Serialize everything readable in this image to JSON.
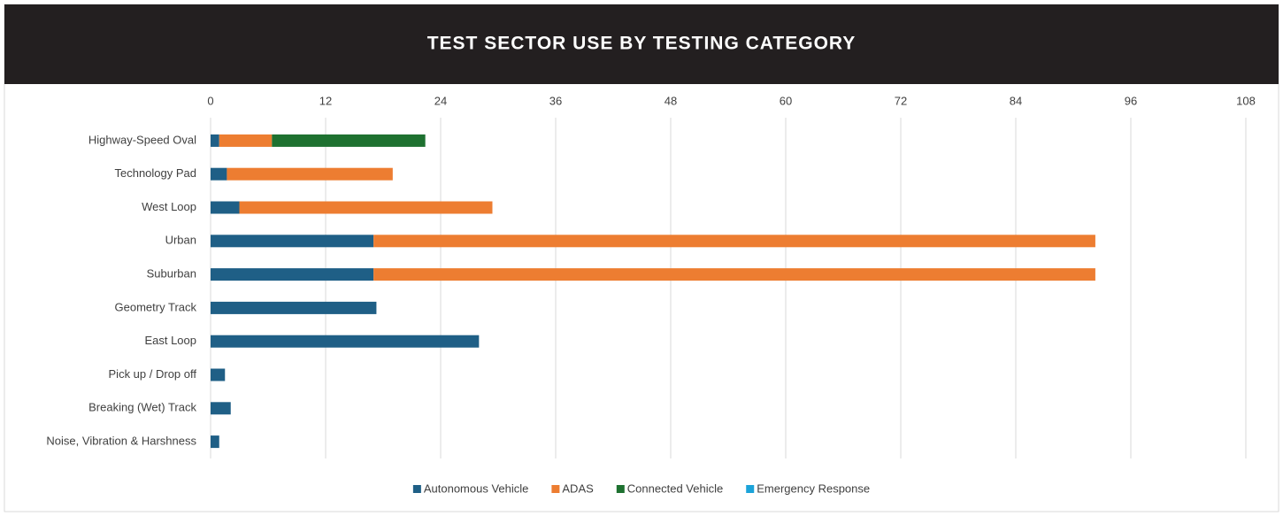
{
  "chart_data": {
    "type": "stacked_barh",
    "title": "TEST SECTOR USE BY TESTING CATEGORY",
    "categories": [
      "Highway-Speed Oval",
      "Technology Pad",
      "West Loop",
      "Urban",
      "Suburban",
      "Geometry Track",
      "East Loop",
      "Pick up / Drop off",
      "Breaking (Wet) Track",
      "Noise, Vibration & Harshness"
    ],
    "series": [
      {
        "name": "Autonomous Vehicle",
        "color": "#1f5f86",
        "values": [
          0.9,
          1.7,
          3.0,
          17.0,
          17.0,
          17.3,
          28.0,
          1.5,
          2.1,
          0.9
        ]
      },
      {
        "name": "ADAS",
        "color": "#ed7d31",
        "values": [
          5.5,
          17.3,
          26.4,
          75.3,
          75.3,
          0,
          0,
          0,
          0,
          0
        ]
      },
      {
        "name": "Connected Vehicle",
        "color": "#1e7130",
        "values": [
          16.0,
          0,
          0,
          0,
          0,
          0,
          0,
          0,
          0,
          0
        ]
      },
      {
        "name": "Emergency Response",
        "color": "#1ba3d9",
        "values": [
          0,
          0,
          0,
          0,
          0,
          0,
          0,
          0,
          0,
          0
        ]
      }
    ],
    "xlim": [
      0,
      108
    ],
    "xticks": [
      0,
      12,
      24,
      36,
      48,
      60,
      72,
      84,
      96,
      108
    ],
    "grid": true,
    "legend": "bottom"
  }
}
